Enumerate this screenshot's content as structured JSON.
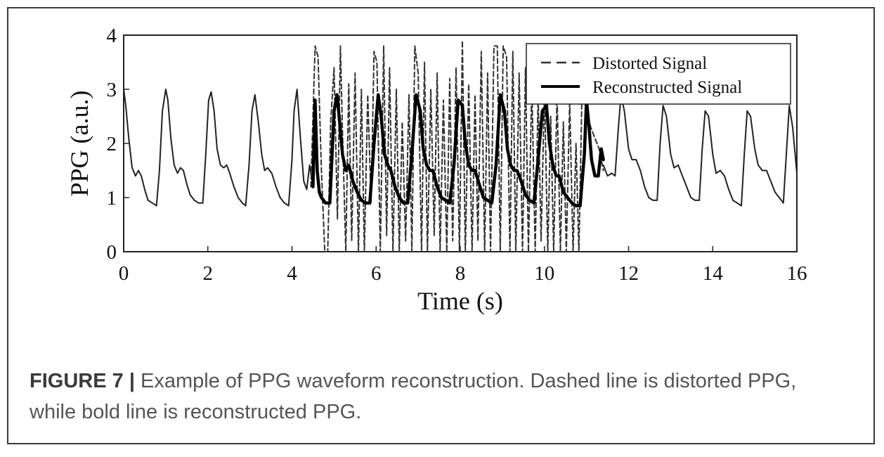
{
  "figure": {
    "caption_label": "FIGURE 7",
    "caption_separator": "|",
    "caption_text": "Example of PPG waveform reconstruction. Dashed line is distorted PPG, while bold line is reconstructed PPG."
  },
  "chart_data": {
    "type": "line",
    "title": "",
    "xlabel": "Time (s)",
    "ylabel": "PPG (a.u.)",
    "xlim": [
      0,
      16
    ],
    "ylim": [
      0,
      4
    ],
    "xticks": [
      0,
      2,
      4,
      6,
      8,
      10,
      12,
      14,
      16
    ],
    "yticks": [
      0,
      1,
      2,
      3,
      4
    ],
    "x_tick_labels": [
      "0",
      "2",
      "4",
      "6",
      "8",
      "10",
      "12",
      "14",
      "16"
    ],
    "y_tick_labels": [
      "0",
      "1",
      "2",
      "3",
      "4"
    ],
    "grid": false,
    "legend_position": "top-right",
    "series": [
      {
        "name": "Distorted Signal",
        "style": "dashed",
        "color": "#333333",
        "x": [
          4.45,
          4.55,
          4.62,
          4.7,
          4.78,
          4.85,
          4.92,
          5.0,
          5.08,
          5.15,
          5.2,
          5.28,
          5.35,
          5.42,
          5.5,
          5.58,
          5.65,
          5.72,
          5.8,
          5.88,
          5.95,
          6.02,
          6.1,
          6.18,
          6.25,
          6.32,
          6.4,
          6.48,
          6.55,
          6.62,
          6.7,
          6.78,
          6.85,
          6.92,
          7.0,
          7.08,
          7.15,
          7.22,
          7.3,
          7.38,
          7.45,
          7.52,
          7.6,
          7.68,
          7.75,
          7.82,
          7.9,
          7.98,
          8.05,
          8.12,
          8.2,
          8.28,
          8.35,
          8.42,
          8.5,
          8.58,
          8.65,
          8.72,
          8.8,
          8.88,
          8.95,
          9.02,
          9.1,
          9.18,
          9.25,
          9.32,
          9.4,
          9.48,
          9.55,
          9.62,
          9.7,
          9.78,
          9.85,
          9.92,
          10.0,
          10.08,
          10.15,
          10.22,
          10.3,
          10.38,
          10.45,
          10.52,
          10.6,
          10.68,
          10.75,
          10.82,
          10.9,
          11.0,
          11.1,
          11.2,
          11.3,
          11.4
        ],
        "y": [
          1.2,
          3.8,
          3.6,
          1.5,
          0.0,
          0.0,
          2.4,
          3.4,
          0.6,
          3.8,
          2.2,
          0.0,
          3.1,
          0.2,
          3.3,
          0.0,
          3.0,
          0.0,
          2.9,
          0.9,
          3.7,
          3.5,
          0.0,
          3.8,
          0.3,
          3.4,
          0.0,
          3.0,
          0.0,
          2.4,
          0.2,
          2.9,
          0.0,
          3.8,
          3.3,
          0.0,
          3.5,
          0.0,
          3.0,
          0.3,
          3.3,
          0.0,
          2.8,
          0.0,
          3.2,
          0.2,
          3.4,
          0.0,
          3.9,
          0.0,
          3.1,
          0.0,
          2.9,
          0.2,
          3.7,
          0.0,
          3.3,
          0.0,
          3.8,
          3.8,
          0.0,
          3.8,
          3.6,
          0.0,
          3.7,
          0.0,
          3.3,
          0.0,
          3.4,
          0.0,
          3.1,
          0.0,
          2.9,
          0.2,
          3.0,
          0.0,
          2.5,
          0.0,
          2.9,
          0.0,
          2.4,
          0.0,
          2.8,
          0.0,
          2.0,
          0.0,
          3.2,
          2.6,
          2.3,
          2.1,
          1.9,
          1.5
        ]
      },
      {
        "name": "Reconstructed Signal",
        "style": "bold",
        "color": "#000000",
        "x": [
          4.5,
          4.55,
          4.6,
          4.65,
          4.7,
          4.8,
          4.9,
          5.0,
          5.07,
          5.12,
          5.2,
          5.28,
          5.35,
          5.45,
          5.55,
          5.65,
          5.75,
          5.85,
          5.95,
          6.05,
          6.12,
          6.2,
          6.28,
          6.35,
          6.45,
          6.55,
          6.65,
          6.75,
          6.85,
          6.95,
          7.05,
          7.12,
          7.2,
          7.28,
          7.35,
          7.45,
          7.55,
          7.65,
          7.75,
          7.85,
          7.95,
          8.05,
          8.12,
          8.2,
          8.28,
          8.35,
          8.45,
          8.55,
          8.65,
          8.75,
          8.85,
          8.95,
          9.05,
          9.12,
          9.2,
          9.28,
          9.35,
          9.45,
          9.55,
          9.65,
          9.75,
          9.85,
          9.95,
          10.05,
          10.12,
          10.2,
          10.28,
          10.35,
          10.45,
          10.55,
          10.65,
          10.75,
          10.85,
          10.95,
          11.0,
          11.05,
          11.12,
          11.2,
          11.28,
          11.35,
          11.4
        ],
        "y": [
          1.2,
          2.8,
          1.5,
          1.1,
          1.0,
          0.9,
          0.9,
          2.6,
          2.9,
          2.5,
          1.8,
          1.5,
          1.6,
          1.3,
          1.1,
          0.95,
          0.9,
          0.9,
          2.0,
          2.9,
          2.5,
          1.8,
          1.6,
          1.5,
          1.2,
          1.0,
          0.9,
          0.9,
          1.8,
          2.9,
          2.6,
          1.9,
          1.6,
          1.5,
          1.5,
          1.2,
          1.0,
          0.95,
          0.9,
          1.6,
          2.8,
          2.7,
          2.0,
          1.6,
          1.5,
          1.5,
          1.25,
          1.0,
          0.95,
          0.9,
          1.6,
          2.9,
          2.6,
          1.9,
          1.6,
          1.5,
          1.5,
          1.3,
          1.05,
          0.95,
          0.9,
          1.7,
          2.6,
          2.7,
          2.0,
          1.6,
          1.4,
          1.4,
          1.1,
          1.0,
          0.9,
          0.85,
          0.85,
          1.8,
          2.8,
          2.4,
          1.7,
          1.4,
          1.4,
          1.9,
          1.7
        ]
      },
      {
        "name": "",
        "style": "solid",
        "color": "#222222",
        "x": [
          0.0,
          0.05,
          0.12,
          0.2,
          0.28,
          0.35,
          0.42,
          0.5,
          0.58,
          0.68,
          0.78,
          0.85,
          0.92,
          1.0,
          1.05,
          1.12,
          1.2,
          1.28,
          1.35,
          1.42,
          1.5,
          1.58,
          1.68,
          1.78,
          1.88,
          1.95,
          2.02,
          2.08,
          2.15,
          2.22,
          2.3,
          2.38,
          2.45,
          2.52,
          2.62,
          2.72,
          2.82,
          2.9,
          2.98,
          3.05,
          3.12,
          3.2,
          3.28,
          3.35,
          3.42,
          3.52,
          3.62,
          3.72,
          3.82,
          3.92,
          4.0,
          4.05,
          4.12,
          4.2,
          4.28,
          4.35,
          4.42,
          4.5
        ],
        "y": [
          3.0,
          2.7,
          2.1,
          1.55,
          1.4,
          1.5,
          1.4,
          1.15,
          0.95,
          0.9,
          0.85,
          1.5,
          2.6,
          3.0,
          2.8,
          2.1,
          1.6,
          1.45,
          1.55,
          1.5,
          1.25,
          1.05,
          0.95,
          0.9,
          0.9,
          1.8,
          2.8,
          2.95,
          2.6,
          1.9,
          1.6,
          1.55,
          1.6,
          1.45,
          1.2,
          1.0,
          0.9,
          0.85,
          1.6,
          2.6,
          2.9,
          2.4,
          1.8,
          1.5,
          1.55,
          1.45,
          1.2,
          1.0,
          0.9,
          0.85,
          1.7,
          2.6,
          3.0,
          2.1,
          1.3,
          1.15,
          1.6,
          1.2
        ]
      },
      {
        "name": "",
        "style": "solid",
        "color": "#222222",
        "x": [
          11.4,
          11.5,
          11.6,
          11.68,
          11.75,
          11.82,
          11.9,
          12.0,
          12.08,
          12.18,
          12.28,
          12.38,
          12.48,
          12.58,
          12.68,
          12.75,
          12.82,
          12.9,
          13.0,
          13.08,
          13.18,
          13.28,
          13.38,
          13.48,
          13.58,
          13.68,
          13.75,
          13.82,
          13.9,
          14.0,
          14.08,
          14.18,
          14.28,
          14.38,
          14.48,
          14.58,
          14.68,
          14.75,
          14.82,
          14.9,
          15.0,
          15.08,
          15.18,
          15.28,
          15.38,
          15.48,
          15.58,
          15.68,
          15.75,
          15.82,
          15.9,
          16.0
        ],
        "y": [
          1.6,
          1.4,
          1.45,
          1.4,
          2.2,
          2.9,
          2.6,
          1.9,
          1.7,
          1.7,
          1.5,
          1.2,
          1.0,
          0.95,
          0.95,
          2.0,
          2.7,
          2.5,
          1.8,
          1.55,
          1.6,
          1.4,
          1.2,
          1.0,
          0.95,
          0.95,
          1.9,
          2.6,
          2.5,
          1.8,
          1.45,
          1.5,
          1.4,
          1.15,
          0.95,
          0.9,
          0.85,
          1.8,
          2.6,
          2.5,
          1.9,
          1.6,
          1.5,
          1.5,
          1.3,
          1.1,
          1.0,
          0.9,
          1.8,
          2.7,
          2.3,
          1.45
        ]
      }
    ]
  }
}
